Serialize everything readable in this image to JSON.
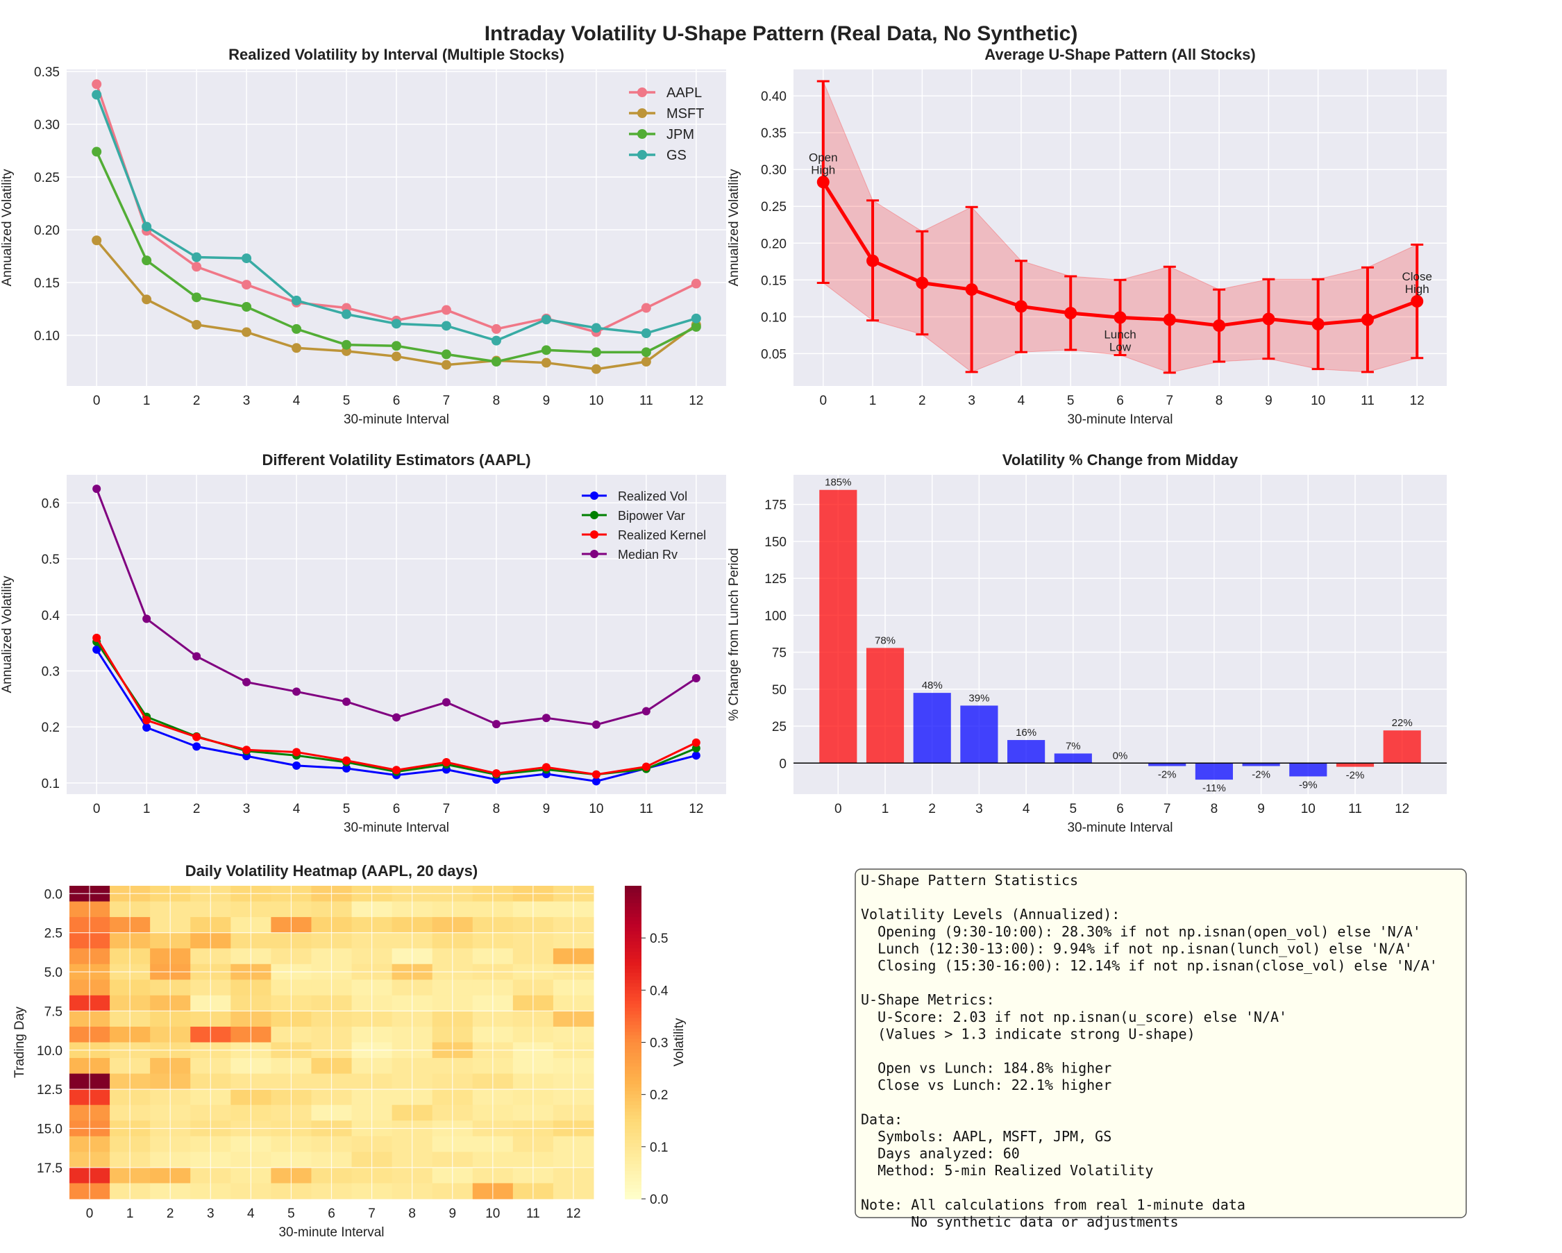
{
  "figure": {
    "title": "Intraday Volatility U-Shape Pattern (Real Data, No Synthetic)"
  },
  "chart_data": [
    {
      "id": "realized",
      "type": "line",
      "title": "Realized Volatility by Interval (Multiple Stocks)",
      "xlabel": "30-minute Interval",
      "ylabel": "Annualized Volatility",
      "x": [
        0,
        1,
        2,
        3,
        4,
        5,
        6,
        7,
        8,
        9,
        10,
        11,
        12
      ],
      "ylim": [
        0.052,
        0.352
      ],
      "yticks": [
        0.1,
        0.15,
        0.2,
        0.25,
        0.3,
        0.35
      ],
      "ytick_labels": [
        "0.10",
        "0.15",
        "0.20",
        "0.25",
        "0.30",
        "0.35"
      ],
      "legend": "top-right",
      "series": [
        {
          "name": "AAPL",
          "color": "#f07787",
          "values": [
            0.338,
            0.199,
            0.165,
            0.148,
            0.131,
            0.126,
            0.114,
            0.124,
            0.106,
            0.116,
            0.103,
            0.126,
            0.149
          ]
        },
        {
          "name": "MSFT",
          "color": "#bd9438",
          "values": [
            0.19,
            0.134,
            0.11,
            0.103,
            0.088,
            0.085,
            0.08,
            0.072,
            0.076,
            0.074,
            0.068,
            0.075,
            0.11
          ]
        },
        {
          "name": "JPM",
          "color": "#52ad35",
          "values": [
            0.274,
            0.171,
            0.136,
            0.127,
            0.106,
            0.091,
            0.09,
            0.082,
            0.075,
            0.086,
            0.084,
            0.084,
            0.108
          ]
        },
        {
          "name": "GS",
          "color": "#38aba4",
          "values": [
            0.328,
            0.203,
            0.174,
            0.173,
            0.133,
            0.12,
            0.111,
            0.109,
            0.095,
            0.115,
            0.107,
            0.102,
            0.116
          ]
        }
      ]
    },
    {
      "id": "average",
      "type": "line",
      "title": "Average U-Shape Pattern (All Stocks)",
      "xlabel": "30-minute Interval",
      "ylabel": "Annualized Volatility",
      "x": [
        0,
        1,
        2,
        3,
        4,
        5,
        6,
        7,
        8,
        9,
        10,
        11,
        12
      ],
      "ylim": [
        0.006,
        0.436
      ],
      "yticks": [
        0.05,
        0.1,
        0.15,
        0.2,
        0.25,
        0.3,
        0.35,
        0.4
      ],
      "ytick_labels": [
        "0.05",
        "0.10",
        "0.15",
        "0.20",
        "0.25",
        "0.30",
        "0.35",
        "0.40"
      ],
      "color": "#ff0000",
      "series": [
        {
          "mean": [
            0.283,
            0.176,
            0.146,
            0.137,
            0.114,
            0.105,
            0.099,
            0.096,
            0.088,
            0.097,
            0.09,
            0.096,
            0.121
          ],
          "upper": [
            0.42,
            0.258,
            0.216,
            0.249,
            0.176,
            0.155,
            0.15,
            0.168,
            0.137,
            0.151,
            0.151,
            0.167,
            0.198
          ],
          "lower": [
            0.146,
            0.095,
            0.076,
            0.025,
            0.052,
            0.055,
            0.048,
            0.024,
            0.039,
            0.043,
            0.029,
            0.025,
            0.044
          ]
        }
      ],
      "annotations": [
        {
          "lines": [
            "Open",
            "High"
          ],
          "x": 0,
          "y": 0.283
        },
        {
          "lines": [
            "Lunch",
            "Low"
          ],
          "x": 6,
          "y": 0.099
        },
        {
          "lines": [
            "Close",
            "High"
          ],
          "x": 12,
          "y": 0.121
        }
      ]
    },
    {
      "id": "estimators",
      "type": "line",
      "title": "Different Volatility Estimators (AAPL)",
      "xlabel": "30-minute Interval",
      "ylabel": "Annualized Volatility",
      "x": [
        0,
        1,
        2,
        3,
        4,
        5,
        6,
        7,
        8,
        9,
        10,
        11,
        12
      ],
      "ylim": [
        0.08,
        0.65
      ],
      "yticks": [
        0.1,
        0.2,
        0.3,
        0.4,
        0.5,
        0.6
      ],
      "ytick_labels": [
        "0.1",
        "0.2",
        "0.3",
        "0.4",
        "0.5",
        "0.6"
      ],
      "legend": "top-right",
      "series": [
        {
          "name": "Realized Vol",
          "color": "#0000ff",
          "values": [
            0.338,
            0.199,
            0.165,
            0.148,
            0.131,
            0.126,
            0.114,
            0.124,
            0.106,
            0.116,
            0.103,
            0.126,
            0.149
          ]
        },
        {
          "name": "Bipower Var",
          "color": "#008000",
          "values": [
            0.352,
            0.218,
            0.183,
            0.157,
            0.149,
            0.137,
            0.12,
            0.133,
            0.115,
            0.124,
            0.115,
            0.125,
            0.162
          ]
        },
        {
          "name": "Realized Kernel",
          "color": "#ff0000",
          "values": [
            0.359,
            0.212,
            0.182,
            0.159,
            0.155,
            0.14,
            0.123,
            0.137,
            0.117,
            0.128,
            0.115,
            0.129,
            0.172
          ]
        },
        {
          "name": "Median Rv",
          "color": "#800080",
          "values": [
            0.625,
            0.393,
            0.326,
            0.28,
            0.263,
            0.245,
            0.217,
            0.244,
            0.205,
            0.216,
            0.204,
            0.228,
            0.287
          ]
        }
      ]
    },
    {
      "id": "pctchange",
      "type": "bar",
      "title": "Volatility % Change from Midday",
      "xlabel": "30-minute Interval",
      "ylabel": "% Change from Lunch Period",
      "categories": [
        "0",
        "1",
        "2",
        "3",
        "4",
        "5",
        "6",
        "7",
        "8",
        "9",
        "10",
        "11",
        "12"
      ],
      "values": [
        184.8,
        77.9,
        47.5,
        38.9,
        15.6,
        6.5,
        0.0,
        -2.0,
        -11.2,
        -2.0,
        -9.0,
        -2.5,
        22.1
      ],
      "data_labels": [
        "185%",
        "78%",
        "48%",
        "39%",
        "16%",
        "7%",
        "0%",
        "-2%",
        "-11%",
        "-2%",
        "-9%",
        "-2%",
        "22%"
      ],
      "bar_colors": [
        "#ff0000",
        "#ff0000",
        "#0000ff",
        "#0000ff",
        "#0000ff",
        "#0000ff",
        "#0000ff",
        "#0000ff",
        "#0000ff",
        "#0000ff",
        "#0000ff",
        "#ff0000",
        "#ff0000"
      ],
      "ylim": [
        -21,
        195
      ],
      "yticks": [
        0,
        25,
        50,
        75,
        100,
        125,
        150,
        175
      ],
      "ytick_labels": [
        "0",
        "25",
        "50",
        "75",
        "100",
        "125",
        "150",
        "175"
      ]
    },
    {
      "id": "heatmap",
      "type": "heatmap",
      "title": "Daily Volatility Heatmap (AAPL, 20 days)",
      "xlabel": "30-minute Interval",
      "ylabel": "Trading Day",
      "colorbar_label": "Volatility",
      "vmin": 0.0,
      "vmax": 0.6,
      "colorbar_ticks": [
        0.0,
        0.1,
        0.2,
        0.3,
        0.4,
        0.5
      ],
      "colorbar_tick_labels": [
        "0.0",
        "0.1",
        "0.2",
        "0.3",
        "0.4",
        "0.5"
      ],
      "xtick_labels": [
        "0",
        "1",
        "2",
        "3",
        "4",
        "5",
        "6",
        "7",
        "8",
        "9",
        "10",
        "11",
        "12"
      ],
      "yticks": [
        0,
        2.5,
        5,
        7.5,
        10,
        12.5,
        15,
        17.5
      ],
      "ytick_labels": [
        "0.0",
        "2.5",
        "5.0",
        "7.5",
        "10.0",
        "12.5",
        "15.0",
        "17.5"
      ],
      "values": [
        [
          0.6,
          0.17,
          0.15,
          0.12,
          0.15,
          0.14,
          0.17,
          0.14,
          0.12,
          0.12,
          0.14,
          0.16,
          0.13
        ],
        [
          0.28,
          0.12,
          0.1,
          0.1,
          0.11,
          0.11,
          0.12,
          0.05,
          0.07,
          0.08,
          0.08,
          0.06,
          0.06
        ],
        [
          0.32,
          0.28,
          0.1,
          0.16,
          0.08,
          0.27,
          0.16,
          0.14,
          0.16,
          0.18,
          0.13,
          0.12,
          0.1
        ],
        [
          0.34,
          0.2,
          0.17,
          0.22,
          0.13,
          0.13,
          0.12,
          0.1,
          0.1,
          0.13,
          0.11,
          0.1,
          0.09
        ],
        [
          0.28,
          0.14,
          0.24,
          0.1,
          0.07,
          0.1,
          0.07,
          0.09,
          0.04,
          0.09,
          0.06,
          0.1,
          0.22
        ],
        [
          0.23,
          0.12,
          0.25,
          0.13,
          0.2,
          0.06,
          0.07,
          0.1,
          0.18,
          0.09,
          0.1,
          0.08,
          0.09
        ],
        [
          0.25,
          0.15,
          0.13,
          0.1,
          0.14,
          0.08,
          0.08,
          0.06,
          0.09,
          0.07,
          0.07,
          0.1,
          0.06
        ],
        [
          0.4,
          0.17,
          0.2,
          0.05,
          0.13,
          0.11,
          0.12,
          0.07,
          0.06,
          0.07,
          0.05,
          0.16,
          0.08
        ],
        [
          0.2,
          0.12,
          0.15,
          0.14,
          0.18,
          0.15,
          0.12,
          0.11,
          0.09,
          0.13,
          0.09,
          0.1,
          0.19
        ],
        [
          0.3,
          0.22,
          0.17,
          0.35,
          0.3,
          0.09,
          0.1,
          0.06,
          0.07,
          0.12,
          0.06,
          0.08,
          0.07
        ],
        [
          0.15,
          0.12,
          0.13,
          0.11,
          0.08,
          0.13,
          0.1,
          0.04,
          0.07,
          0.17,
          0.09,
          0.05,
          0.08
        ],
        [
          0.22,
          0.1,
          0.2,
          0.09,
          0.05,
          0.07,
          0.16,
          0.07,
          0.09,
          0.09,
          0.08,
          0.05,
          0.06
        ],
        [
          0.6,
          0.18,
          0.19,
          0.12,
          0.1,
          0.1,
          0.1,
          0.1,
          0.09,
          0.1,
          0.12,
          0.08,
          0.07
        ],
        [
          0.4,
          0.12,
          0.1,
          0.08,
          0.16,
          0.13,
          0.1,
          0.07,
          0.07,
          0.11,
          0.07,
          0.08,
          0.07
        ],
        [
          0.28,
          0.1,
          0.09,
          0.1,
          0.11,
          0.1,
          0.05,
          0.07,
          0.14,
          0.1,
          0.08,
          0.07,
          0.09
        ],
        [
          0.3,
          0.14,
          0.1,
          0.12,
          0.1,
          0.11,
          0.13,
          0.08,
          0.09,
          0.07,
          0.1,
          0.11,
          0.14
        ],
        [
          0.2,
          0.12,
          0.09,
          0.08,
          0.06,
          0.08,
          0.09,
          0.1,
          0.09,
          0.06,
          0.06,
          0.1,
          0.07
        ],
        [
          0.18,
          0.1,
          0.07,
          0.06,
          0.07,
          0.06,
          0.07,
          0.12,
          0.09,
          0.1,
          0.08,
          0.08,
          0.07
        ],
        [
          0.42,
          0.2,
          0.21,
          0.1,
          0.08,
          0.2,
          0.12,
          0.11,
          0.1,
          0.06,
          0.09,
          0.07,
          0.09
        ],
        [
          0.3,
          0.09,
          0.07,
          0.08,
          0.09,
          0.1,
          0.09,
          0.08,
          0.09,
          0.1,
          0.24,
          0.14,
          0.09
        ]
      ]
    }
  ],
  "stats_box": {
    "lines": [
      "U-Shape Pattern Statistics",
      "",
      "Volatility Levels (Annualized):",
      "  Opening (9:30-10:00): 28.30% if not np.isnan(open_vol) else 'N/A'",
      "  Lunch (12:30-13:00): 9.94% if not np.isnan(lunch_vol) else 'N/A'",
      "  Closing (15:30-16:00): 12.14% if not np.isnan(close_vol) else 'N/A'",
      "",
      "U-Shape Metrics:",
      "  U-Score: 2.03 if not np.isnan(u_score) else 'N/A'",
      "  (Values > 1.3 indicate strong U-shape)",
      "",
      "  Open vs Lunch: 184.8% higher",
      "  Close vs Lunch: 22.1% higher",
      "",
      "Data:",
      "  Symbols: AAPL, MSFT, JPM, GS",
      "  Days analyzed: 60",
      "  Method: 5-min Realized Volatility",
      "",
      "Note: All calculations from real 1-minute data",
      "      No synthetic data or adjustments"
    ]
  }
}
